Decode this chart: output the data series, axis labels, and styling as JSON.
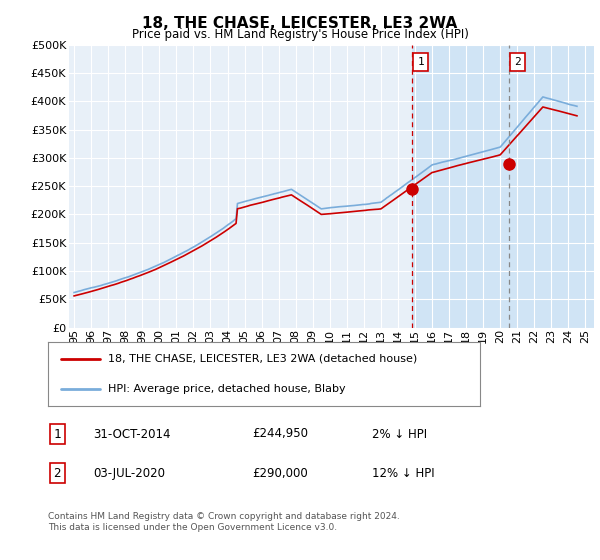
{
  "title": "18, THE CHASE, LEICESTER, LE3 2WA",
  "subtitle": "Price paid vs. HM Land Registry's House Price Index (HPI)",
  "ylabel_ticks": [
    "£0",
    "£50K",
    "£100K",
    "£150K",
    "£200K",
    "£250K",
    "£300K",
    "£350K",
    "£400K",
    "£450K",
    "£500K"
  ],
  "ytick_vals": [
    0,
    50000,
    100000,
    150000,
    200000,
    250000,
    300000,
    350000,
    400000,
    450000,
    500000
  ],
  "ylim": [
    0,
    500000
  ],
  "xlim_start": 1994.7,
  "xlim_end": 2025.5,
  "xtick_years": [
    1995,
    1996,
    1997,
    1998,
    1999,
    2000,
    2001,
    2002,
    2003,
    2004,
    2005,
    2006,
    2007,
    2008,
    2009,
    2010,
    2011,
    2012,
    2013,
    2014,
    2015,
    2016,
    2017,
    2018,
    2019,
    2020,
    2021,
    2022,
    2023,
    2024,
    2025
  ],
  "xtick_labels": [
    "95",
    "96",
    "97",
    "98",
    "99",
    "00",
    "01",
    "02",
    "03",
    "04",
    "05",
    "06",
    "07",
    "08",
    "09",
    "10",
    "11",
    "12",
    "13",
    "14",
    "15",
    "16",
    "17",
    "18",
    "19",
    "20",
    "21",
    "22",
    "23",
    "24",
    "25"
  ],
  "hpi_color": "#7aaddb",
  "price_color": "#cc0000",
  "background_chart": "#e8f0f8",
  "background_highlight": "#d0e4f5",
  "grid_color": "#ffffff",
  "sale1_x": 2014.83,
  "sale1_y": 244950,
  "sale2_x": 2020.5,
  "sale2_y": 290000,
  "vline1_x": 2014.83,
  "vline2_x": 2020.5,
  "legend_line1": "18, THE CHASE, LEICESTER, LE3 2WA (detached house)",
  "legend_line2": "HPI: Average price, detached house, Blaby",
  "sale1_date": "31-OCT-2014",
  "sale1_price": "£244,950",
  "sale1_hpi": "2% ↓ HPI",
  "sale2_date": "03-JUL-2020",
  "sale2_price": "£290,000",
  "sale2_hpi": "12% ↓ HPI",
  "footer": "Contains HM Land Registry data © Crown copyright and database right 2024.\nThis data is licensed under the Open Government Licence v3.0."
}
